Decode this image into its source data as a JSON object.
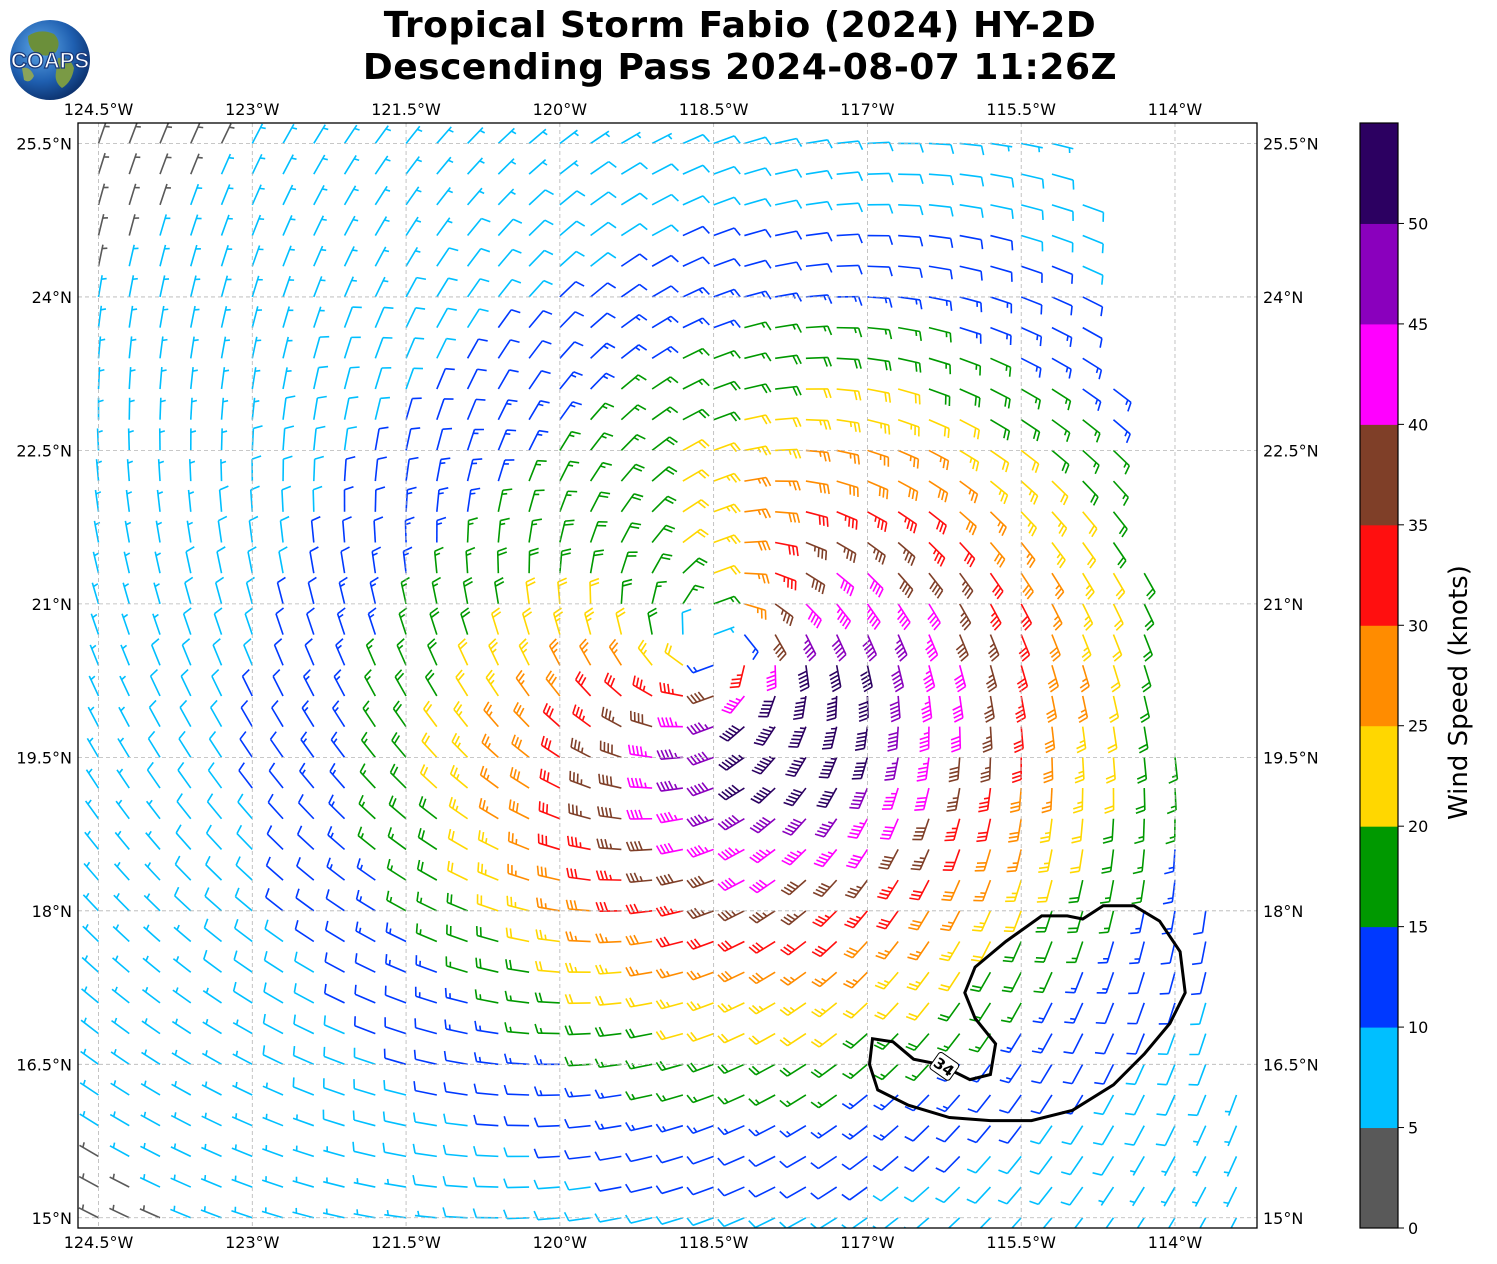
{
  "title": {
    "line1": "Tropical Storm Fabio (2024) HY-2D",
    "line2": "Descending Pass 2024-08-07 11:26Z"
  },
  "logo": {
    "text": "COAPS",
    "icon": "earth-globe-logo"
  },
  "map": {
    "lon_ticks": [
      "124.5°W",
      "123°W",
      "121.5°W",
      "120°W",
      "118.5°W",
      "117°W",
      "115.5°W",
      "114°W"
    ],
    "lat_ticks": [
      "25.5°N",
      "24°N",
      "22.5°N",
      "21°N",
      "19.5°N",
      "18°N",
      "16.5°N",
      "15°N"
    ],
    "lon_range": [
      -124.7,
      -113.2
    ],
    "lat_range": [
      14.9,
      25.7
    ],
    "gridlines": true,
    "storm_center": {
      "lon": -118.5,
      "lat": 20.6
    },
    "contour": {
      "label": "34",
      "units": "knots"
    }
  },
  "colorbar": {
    "title": "Wind Speed (knots)",
    "levels": [
      "0",
      "5",
      "10",
      "15",
      "20",
      "25",
      "30",
      "35",
      "40",
      "45",
      "50"
    ],
    "colors": [
      "#595959",
      "#00bfff",
      "#0039ff",
      "#009900",
      "#ffd700",
      "#ff8c00",
      "#ff0f0f",
      "#7f3f28",
      "#ff00ff",
      "#8a00bd",
      "#2c0061"
    ]
  }
}
